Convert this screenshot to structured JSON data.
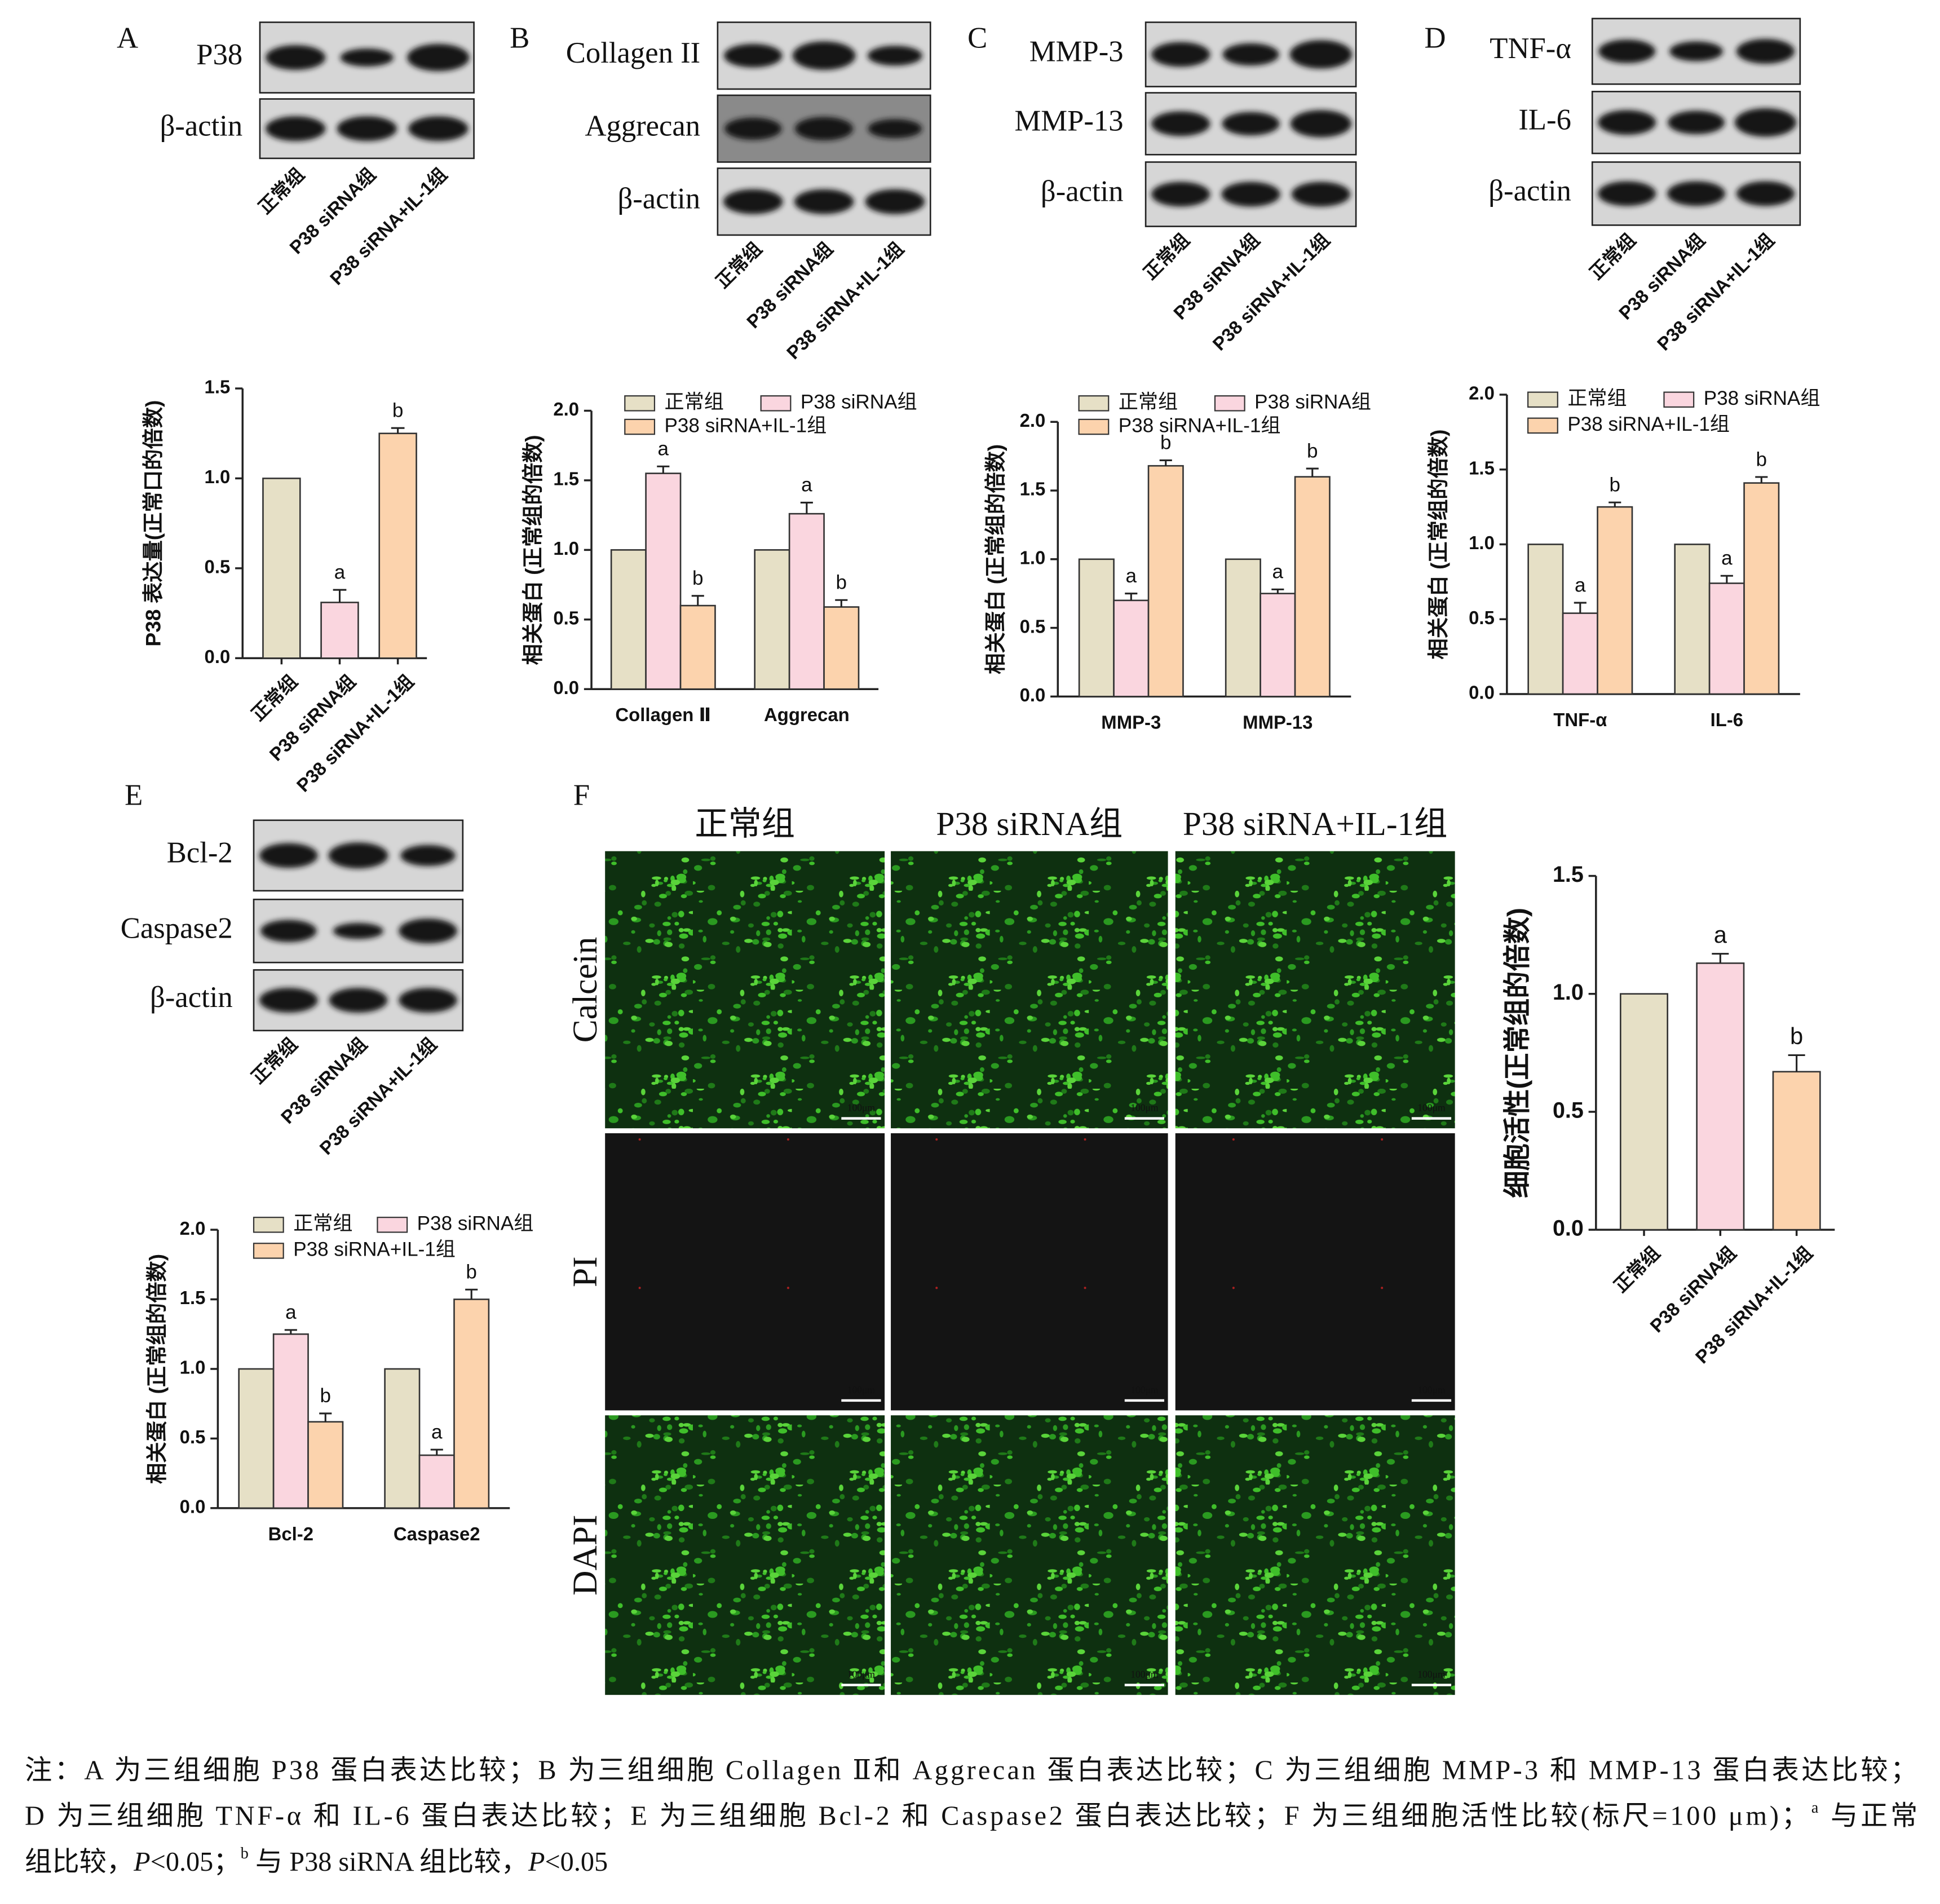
{
  "panel_labels": [
    "A",
    "B",
    "C",
    "D",
    "E",
    "F"
  ],
  "blots": [
    {
      "proteins": [
        "P38",
        "β-actin"
      ],
      "lanes": [
        "正常组",
        "P38 siRNA组",
        "P38 siRNA+IL-1组"
      ]
    },
    {
      "proteins": [
        "Collagen II",
        "Aggrecan",
        "β-actin"
      ],
      "lanes": [
        "正常组",
        "P38 siRNA组",
        "P38 siRNA+IL-1组"
      ]
    },
    {
      "proteins": [
        "MMP-3",
        "MMP-13",
        "β-actin"
      ],
      "lanes": [
        "正常组",
        "P38 siRNA组",
        "P38 siRNA+IL-1组"
      ]
    },
    {
      "proteins": [
        "TNF-α",
        "IL-6",
        "β-actin"
      ],
      "lanes": [
        "正常组",
        "P38 siRNA组",
        "P38 siRNA+IL-1组"
      ]
    },
    {
      "proteins": [
        "Bcl-2",
        "Caspase2",
        "β-actin"
      ],
      "lanes": [
        "正常组",
        "P38 siRNA组",
        "P38 siRNA+IL-1组"
      ]
    }
  ],
  "chart_data": [
    {
      "type": "bar",
      "y_label": "P38 表达量(正常口的倍数)",
      "categories": [
        "正常组",
        "P38 siRNA组",
        "P38 siRNA+IL-1组"
      ],
      "values": [
        1,
        0.31,
        1.25
      ],
      "errors": [
        0,
        0.07,
        0.03
      ],
      "significance": [
        null,
        "a",
        "b"
      ],
      "colors": [
        "#e6e0c6",
        "#fad6df",
        "#fcd3ad"
      ],
      "ylim": [
        0,
        1.5
      ],
      "yticks": [
        {
          "value": 0,
          "label": "0.0"
        },
        0.5,
        {
          "value": 1,
          "label": "1.0"
        },
        1.5
      ]
    },
    {
      "type": "bar",
      "y_label": "相关蛋白 (正常组的倍数)",
      "categories": [
        "Collagen Ⅱ",
        "Aggrecan"
      ],
      "series": [
        {
          "name": "正常组",
          "color": "#e6e0c6",
          "values": [
            1,
            1
          ]
        },
        {
          "name": "P38 siRNA组",
          "color": "#fad6df",
          "values": [
            1.55,
            1.26
          ],
          "errors": [
            0.05,
            0.08
          ],
          "significance": [
            "a",
            "a"
          ]
        },
        {
          "name": "P38 siRNA+IL-1组",
          "color": "#fcd3ad",
          "values": [
            0.6,
            0.59
          ],
          "errors": [
            0.07,
            0.05
          ],
          "significance": [
            "b",
            "b"
          ]
        }
      ],
      "ylim": [
        0,
        2
      ],
      "yticks": [
        {
          "value": 0,
          "label": "0.0"
        },
        0.5,
        {
          "value": 1,
          "label": "1.0"
        },
        1.5,
        {
          "value": 2,
          "label": "2.0"
        }
      ]
    },
    {
      "type": "bar",
      "y_label": "相关蛋白 (正常组的倍数)",
      "categories": [
        "MMP-3",
        "MMP-13"
      ],
      "series": [
        {
          "name": "正常组",
          "color": "#e6e0c6",
          "values": [
            1,
            1
          ]
        },
        {
          "name": "P38 siRNA组",
          "color": "#fad6df",
          "values": [
            0.7,
            0.75
          ],
          "errors": [
            0.05,
            0.03
          ],
          "significance": [
            "a",
            "a"
          ]
        },
        {
          "name": "P38 siRNA+IL-1组",
          "color": "#fcd3ad",
          "values": [
            1.68,
            1.6
          ],
          "errors": [
            0.04,
            0.06
          ],
          "significance": [
            "b",
            "b"
          ]
        }
      ],
      "ylim": [
        0,
        2
      ],
      "yticks": [
        {
          "value": 0,
          "label": "0.0"
        },
        0.5,
        {
          "value": 1,
          "label": "1.0"
        },
        1.5,
        {
          "value": 2,
          "label": "2.0"
        }
      ]
    },
    {
      "type": "bar",
      "y_label": "相关蛋白 (正常组的倍数)",
      "categories": [
        "TNF-α",
        "IL-6"
      ],
      "series": [
        {
          "name": "正常组",
          "color": "#e6e0c6",
          "values": [
            1,
            1
          ]
        },
        {
          "name": "P38 siRNA组",
          "color": "#fad6df",
          "values": [
            0.54,
            0.74
          ],
          "errors": [
            0.07,
            0.05
          ],
          "significance": [
            "a",
            "a"
          ]
        },
        {
          "name": "P38 siRNA+IL-1组",
          "color": "#fcd3ad",
          "values": [
            1.25,
            1.41
          ],
          "errors": [
            0.03,
            0.04
          ],
          "significance": [
            "b",
            "b"
          ]
        }
      ],
      "ylim": [
        0,
        2
      ],
      "yticks": [
        {
          "value": 0,
          "label": "0.0"
        },
        0.5,
        {
          "value": 1,
          "label": "1.0"
        },
        1.5,
        {
          "value": 2,
          "label": "2.0"
        }
      ]
    },
    {
      "type": "bar",
      "y_label": "相关蛋白 (正常组的倍数)",
      "categories": [
        "Bcl-2",
        "Caspase2"
      ],
      "series": [
        {
          "name": "正常组",
          "color": "#e6e0c6",
          "values": [
            1,
            1
          ]
        },
        {
          "name": "P38 siRNA组",
          "color": "#fad6df",
          "values": [
            1.25,
            0.38
          ],
          "errors": [
            0.03,
            0.04
          ],
          "significance": [
            "a",
            "a"
          ]
        },
        {
          "name": "P38 siRNA+IL-1组",
          "color": "#fcd3ad",
          "values": [
            0.62,
            1.5
          ],
          "errors": [
            0.06,
            0.07
          ],
          "significance": [
            "b",
            "b"
          ]
        }
      ],
      "ylim": [
        0,
        2
      ],
      "yticks": [
        {
          "value": 0,
          "label": "0.0"
        },
        0.5,
        {
          "value": 1,
          "label": "1.0"
        },
        1.5,
        {
          "value": 2,
          "label": "2.0"
        }
      ]
    },
    {
      "type": "bar",
      "y_label": "细胞活性(正常组的倍数)",
      "categories": [
        "正常组",
        "P38 siRNA组",
        "P38 siRNA+IL-1组"
      ],
      "values": [
        1,
        1.13,
        0.67
      ],
      "errors": [
        0,
        0.04,
        0.07
      ],
      "significance": [
        null,
        "a",
        "b"
      ],
      "colors": [
        "#e6e0c6",
        "#fad6df",
        "#fcd3ad"
      ],
      "ylim": [
        0,
        1.5
      ],
      "yticks": [
        {
          "value": 0,
          "label": "0.0"
        },
        0.5,
        {
          "value": 1,
          "label": "1.0"
        },
        1.5
      ]
    }
  ],
  "microscopy": {
    "groups": [
      "正常组",
      "P38 siRNA组",
      "P38 siRNA+IL-1组"
    ],
    "stains": [
      "Calcein",
      "PI",
      "DAPI"
    ],
    "scale_bar": "100μm"
  },
  "note": {
    "lines": [
      [
        {
          "text": "注：A 为三组细胞 P38 蛋白表达比较；B 为三组细胞 Collagen Ⅱ和 Aggrecan 蛋白表达比较；C 为三组细胞 MMP-3 和 MMP-13 蛋白表达比较；"
        }
      ],
      [
        {
          "text": "D 为三组细胞 TNF-α 和 IL-6 蛋白表达比较；E 为三组细胞 Bcl-2 和 Caspase2 蛋白表达比较；F 为三组细胞活性比较(标尺=100 μm)；"
        },
        {
          "text": "a",
          "style": "sup"
        },
        {
          "text": " 与正常"
        }
      ],
      [
        {
          "text": "组比较，"
        },
        {
          "text": "P",
          "style": "italic"
        },
        {
          "text": "<0.05；"
        },
        {
          "text": "b",
          "style": "sup"
        },
        {
          "text": " 与 P38 siRNA 组比较，"
        },
        {
          "text": "P",
          "style": "italic"
        },
        {
          "text": "<0.05"
        }
      ]
    ]
  }
}
